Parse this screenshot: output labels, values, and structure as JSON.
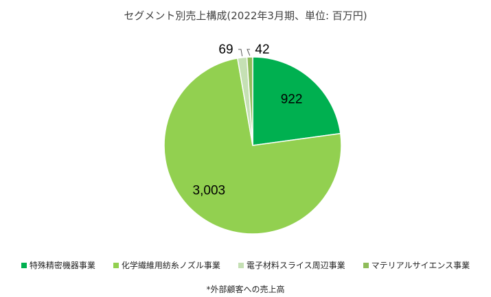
{
  "chart_data": {
    "type": "pie",
    "title": "セグメント別売上構成(2022年3月期、単位: 百万円)",
    "categories": [
      "特殊精密機器事業",
      "化学繊維用紡糸ノズル事業",
      "電子材料スライス周辺事業",
      "マテリアルサイエンス事業"
    ],
    "values": [
      922,
      3003,
      69,
      42
    ],
    "data_labels": [
      "922",
      "3,003",
      "69",
      "42"
    ],
    "colors": [
      "#00b050",
      "#92d050",
      "#c5e0b4",
      "#8fbc5a"
    ],
    "legend_position": "bottom",
    "start_angle": "12 o'clock, clockwise",
    "footnote": "*外部顧客への売上高"
  }
}
